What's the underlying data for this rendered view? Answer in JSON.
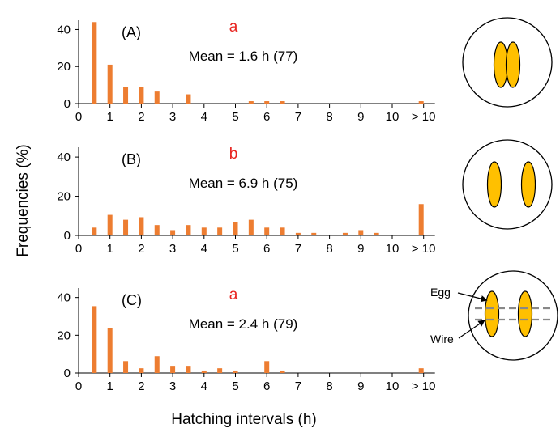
{
  "figure": {
    "ylabel": "Frequencies (%)",
    "xlabel": "Hatching intervals (h)",
    "bar_color": "#ED7D31",
    "letter_color": "#E8231F",
    "egg_color": "#FFC000",
    "wire_color": "#888888",
    "egg_label": "Egg",
    "wire_label": "Wire"
  },
  "chart_data": [
    {
      "type": "bar",
      "panel": "(A)",
      "letter": "a",
      "annotation": "Mean = 1.6 h (77)",
      "x_ticks": [
        "0",
        "1",
        "2",
        "3",
        "4",
        "5",
        "6",
        "7",
        "8",
        "9",
        "10",
        "> 10"
      ],
      "y_ticks": [
        "0",
        "20",
        "40"
      ],
      "ylim": [
        0,
        45
      ],
      "x": [
        0.5,
        1,
        1.5,
        2,
        2.5,
        3,
        3.5,
        4,
        4.5,
        5,
        5.5,
        6,
        6.5,
        7,
        7.5,
        8,
        8.5,
        9,
        9.5,
        10,
        "> 10"
      ],
      "values": [
        44,
        21,
        9,
        9,
        6.5,
        0,
        5,
        0,
        0,
        0,
        1.3,
        1.3,
        1.3,
        0,
        0,
        0,
        0,
        0,
        0,
        0,
        1.3
      ]
    },
    {
      "type": "bar",
      "panel": "(B)",
      "letter": "b",
      "annotation": "Mean = 6.9 h (75)",
      "x_ticks": [
        "0",
        "1",
        "2",
        "3",
        "4",
        "5",
        "6",
        "7",
        "8",
        "9",
        "10",
        "> 10"
      ],
      "y_ticks": [
        "0",
        "20",
        "40"
      ],
      "ylim": [
        0,
        45
      ],
      "x": [
        0.5,
        1,
        1.5,
        2,
        2.5,
        3,
        3.5,
        4,
        4.5,
        5,
        5.5,
        6,
        6.5,
        7,
        7.5,
        8,
        8.5,
        9,
        9.5,
        10,
        "> 10"
      ],
      "values": [
        4,
        10.5,
        8,
        9.3,
        5.3,
        2.7,
        5.3,
        4,
        4,
        6.7,
        8,
        4,
        4,
        1.3,
        1.3,
        0,
        1.3,
        2.7,
        1.3,
        0,
        16
      ]
    },
    {
      "type": "bar",
      "panel": "(C)",
      "letter": "a",
      "annotation": "Mean = 2.4 h (79)",
      "x_ticks": [
        "0",
        "1",
        "2",
        "3",
        "4",
        "5",
        "6",
        "7",
        "8",
        "9",
        "10",
        "> 10"
      ],
      "y_ticks": [
        "0",
        "20",
        "40"
      ],
      "ylim": [
        0,
        45
      ],
      "x": [
        0.5,
        1,
        1.5,
        2,
        2.5,
        3,
        3.5,
        4,
        4.5,
        5,
        5.5,
        6,
        6.5,
        7,
        7.5,
        8,
        8.5,
        9,
        9.5,
        10,
        "> 10"
      ],
      "values": [
        35.4,
        24,
        6.3,
        2.5,
        8.9,
        3.8,
        3.8,
        1.3,
        2.5,
        1.3,
        0,
        6.3,
        1.3,
        0,
        0,
        0,
        0,
        0,
        0,
        0,
        2.5
      ]
    }
  ]
}
